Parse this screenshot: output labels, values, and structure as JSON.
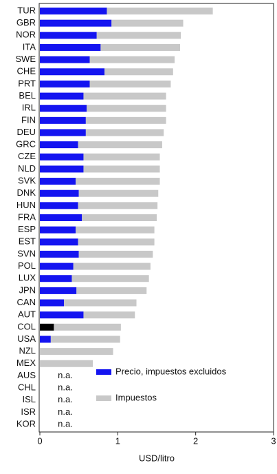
{
  "chart_data": {
    "type": "stacked-barh",
    "categories": [
      "TUR",
      "GBR",
      "NOR",
      "ITA",
      "SWE",
      "CHE",
      "PRT",
      "BEL",
      "IRL",
      "FIN",
      "DEU",
      "GRC",
      "CZE",
      "NLD",
      "SVK",
      "DNK",
      "HUN",
      "FRA",
      "ESP",
      "EST",
      "SVN",
      "POL",
      "LUX",
      "JPN",
      "CAN",
      "AUT",
      "COL",
      "USA",
      "NZL",
      "MEX",
      "AUS",
      "CHL",
      "ISL",
      "ISR",
      "KOR"
    ],
    "series": [
      {
        "name": "Precio, impuestos excluidos",
        "color": "#1414f0",
        "values": [
          0.86,
          0.92,
          0.73,
          0.78,
          0.64,
          0.83,
          0.64,
          0.56,
          0.6,
          0.59,
          0.59,
          0.49,
          0.56,
          0.56,
          0.46,
          0.5,
          0.49,
          0.54,
          0.46,
          0.49,
          0.5,
          0.43,
          0.41,
          0.47,
          0.31,
          0.56,
          0.18,
          0.14,
          null,
          null,
          null,
          null,
          null,
          null,
          null
        ],
        "colors": [
          null,
          null,
          null,
          null,
          null,
          null,
          null,
          null,
          null,
          null,
          null,
          null,
          null,
          null,
          null,
          null,
          null,
          null,
          null,
          null,
          null,
          null,
          null,
          null,
          null,
          null,
          "#000000",
          null,
          null,
          null,
          null,
          null,
          null,
          null,
          null
        ],
        "value_labels": [
          null,
          null,
          null,
          null,
          null,
          null,
          null,
          null,
          null,
          null,
          null,
          null,
          null,
          null,
          null,
          null,
          null,
          null,
          null,
          null,
          null,
          null,
          null,
          null,
          null,
          null,
          null,
          null,
          null,
          null,
          "n.a.",
          "n.a.",
          "n.a.",
          "n.a.",
          "n.a."
        ]
      },
      {
        "name": "Impuestos",
        "color": "#c8c8c8",
        "values": [
          1.36,
          0.92,
          1.08,
          1.02,
          1.09,
          0.88,
          1.04,
          1.06,
          1.02,
          1.03,
          1.0,
          1.08,
          0.98,
          0.98,
          1.08,
          1.02,
          1.02,
          0.96,
          1.01,
          0.98,
          0.95,
          0.99,
          0.99,
          0.9,
          0.93,
          0.66,
          0.86,
          0.89,
          0.94,
          0.68,
          null,
          null,
          null,
          null,
          null
        ]
      }
    ],
    "x_label": "USD/litro",
    "xlim": [
      0,
      3
    ],
    "xticks": [
      0,
      1,
      2,
      3
    ],
    "legend": "lower right"
  }
}
